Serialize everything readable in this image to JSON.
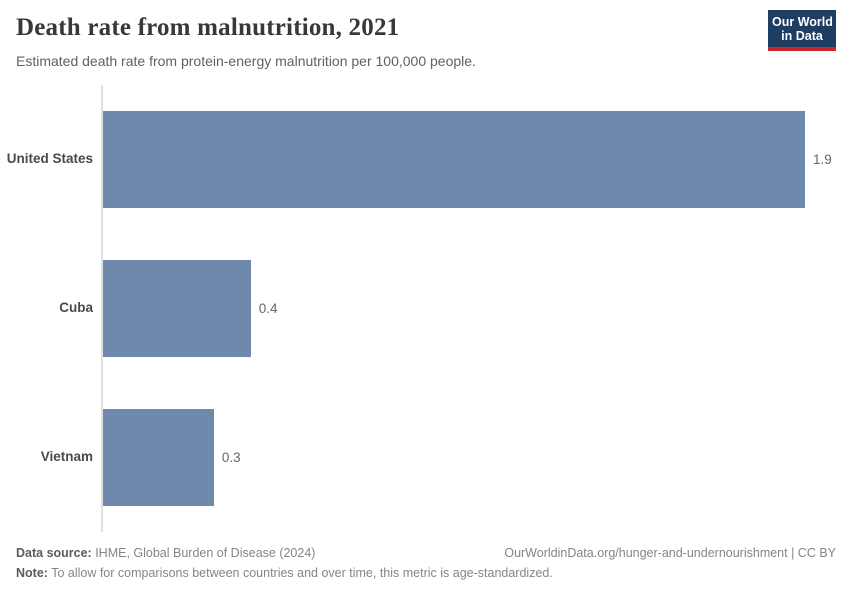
{
  "header": {
    "title": "Death rate from malnutrition, 2021",
    "subtitle": "Estimated death rate from protein-energy malnutrition per 100,000 people.",
    "logo": {
      "line1": "Our World",
      "line2": "in Data",
      "bg_color": "#1d3d63",
      "stripe_color": "#cf2430",
      "text_color": "#ffffff"
    }
  },
  "chart_data": {
    "type": "bar",
    "orientation": "horizontal",
    "title": "Death rate from malnutrition, 2021",
    "subtitle": "Estimated death rate from protein-energy malnutrition per 100,000 people.",
    "categories": [
      "United States",
      "Cuba",
      "Vietnam"
    ],
    "values": [
      1.9,
      0.4,
      0.3
    ],
    "value_labels": [
      "1.9",
      "0.4",
      "0.3"
    ],
    "xlabel": "",
    "ylabel": "",
    "xlim": [
      0,
      1.9
    ],
    "grid": false,
    "legend": false,
    "bar_color": "#6e89ab",
    "axis_color": "#e0e0e0"
  },
  "footer": {
    "source_label": "Data source:",
    "source_text": " IHME, Global Burden of Disease (2024)",
    "note_label": "Note:",
    "note_text": " To allow for comparisons between countries and over time, this metric is age-standardized.",
    "url_text": "OurWorldinData.org/hunger-and-undernourishment | CC BY"
  }
}
